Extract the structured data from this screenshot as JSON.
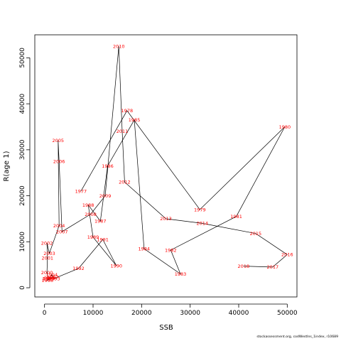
{
  "chart_data": {
    "type": "line",
    "xlabel": "SSB",
    "ylabel": "R(age 1)",
    "xlim": [
      -2000,
      52000
    ],
    "ylim": [
      -2000,
      55000
    ],
    "xticks": [
      0,
      10000,
      20000,
      30000,
      40000,
      50000
    ],
    "yticks": [
      0,
      10000,
      20000,
      30000,
      40000,
      50000
    ],
    "grid": false,
    "line_color": "#000000",
    "label_color": "#ff0000",
    "points": [
      {
        "label": "1977",
        "x": 7500,
        "y": 21000
      },
      {
        "label": "1978",
        "x": 17000,
        "y": 38500
      },
      {
        "label": "1979",
        "x": 32000,
        "y": 17000
      },
      {
        "label": "1980",
        "x": 49500,
        "y": 35000
      },
      {
        "label": "1981",
        "x": 39500,
        "y": 15500
      },
      {
        "label": "1982",
        "x": 26000,
        "y": 8200
      },
      {
        "label": "1983",
        "x": 28000,
        "y": 3000
      },
      {
        "label": "1984",
        "x": 20500,
        "y": 8500
      },
      {
        "label": "1985",
        "x": 18500,
        "y": 36500
      },
      {
        "label": "1986",
        "x": 13000,
        "y": 26500
      },
      {
        "label": "1987",
        "x": 11500,
        "y": 14500
      },
      {
        "label": "1988",
        "x": 9000,
        "y": 18000
      },
      {
        "label": "1989",
        "x": 10000,
        "y": 11000
      },
      {
        "label": "1990",
        "x": 14800,
        "y": 4800
      },
      {
        "label": "1991",
        "x": 12000,
        "y": 10500
      },
      {
        "label": "1992",
        "x": 7000,
        "y": 4200
      },
      {
        "label": "1993",
        "x": 2000,
        "y": 2000
      },
      {
        "label": "1994",
        "x": 1500,
        "y": 2800
      },
      {
        "label": "1995",
        "x": 900,
        "y": 2000
      },
      {
        "label": "1996",
        "x": 1100,
        "y": 2200
      },
      {
        "label": "1997",
        "x": 1700,
        "y": 2300
      },
      {
        "label": "1998",
        "x": 600,
        "y": 1600
      },
      {
        "label": "1999",
        "x": 700,
        "y": 2000
      },
      {
        "label": "2000",
        "x": 500,
        "y": 3300
      },
      {
        "label": "2001",
        "x": 600,
        "y": 6500
      },
      {
        "label": "2002",
        "x": 500,
        "y": 9700
      },
      {
        "label": "2003",
        "x": 1000,
        "y": 7500
      },
      {
        "label": "2004",
        "x": 3000,
        "y": 13500
      },
      {
        "label": "2005",
        "x": 2800,
        "y": 32000
      },
      {
        "label": "2006",
        "x": 3000,
        "y": 27500
      },
      {
        "label": "2007",
        "x": 3600,
        "y": 12200
      },
      {
        "label": "2008",
        "x": 9500,
        "y": 16000
      },
      {
        "label": "2009",
        "x": 12500,
        "y": 20000
      },
      {
        "label": "2010",
        "x": 15300,
        "y": 52500
      },
      {
        "label": "2011",
        "x": 16000,
        "y": 34000
      },
      {
        "label": "2012",
        "x": 16500,
        "y": 23000
      },
      {
        "label": "2013",
        "x": 25000,
        "y": 15000
      },
      {
        "label": "2014",
        "x": 32500,
        "y": 14000
      },
      {
        "label": "2015",
        "x": 43500,
        "y": 11800
      },
      {
        "label": "2016",
        "x": 50000,
        "y": 7200
      },
      {
        "label": "2017",
        "x": 47000,
        "y": 4500
      },
      {
        "label": "2018",
        "x": 41000,
        "y": 4700
      }
    ]
  },
  "footer": "stockassessment.org, codWestIns_1index, r10689"
}
